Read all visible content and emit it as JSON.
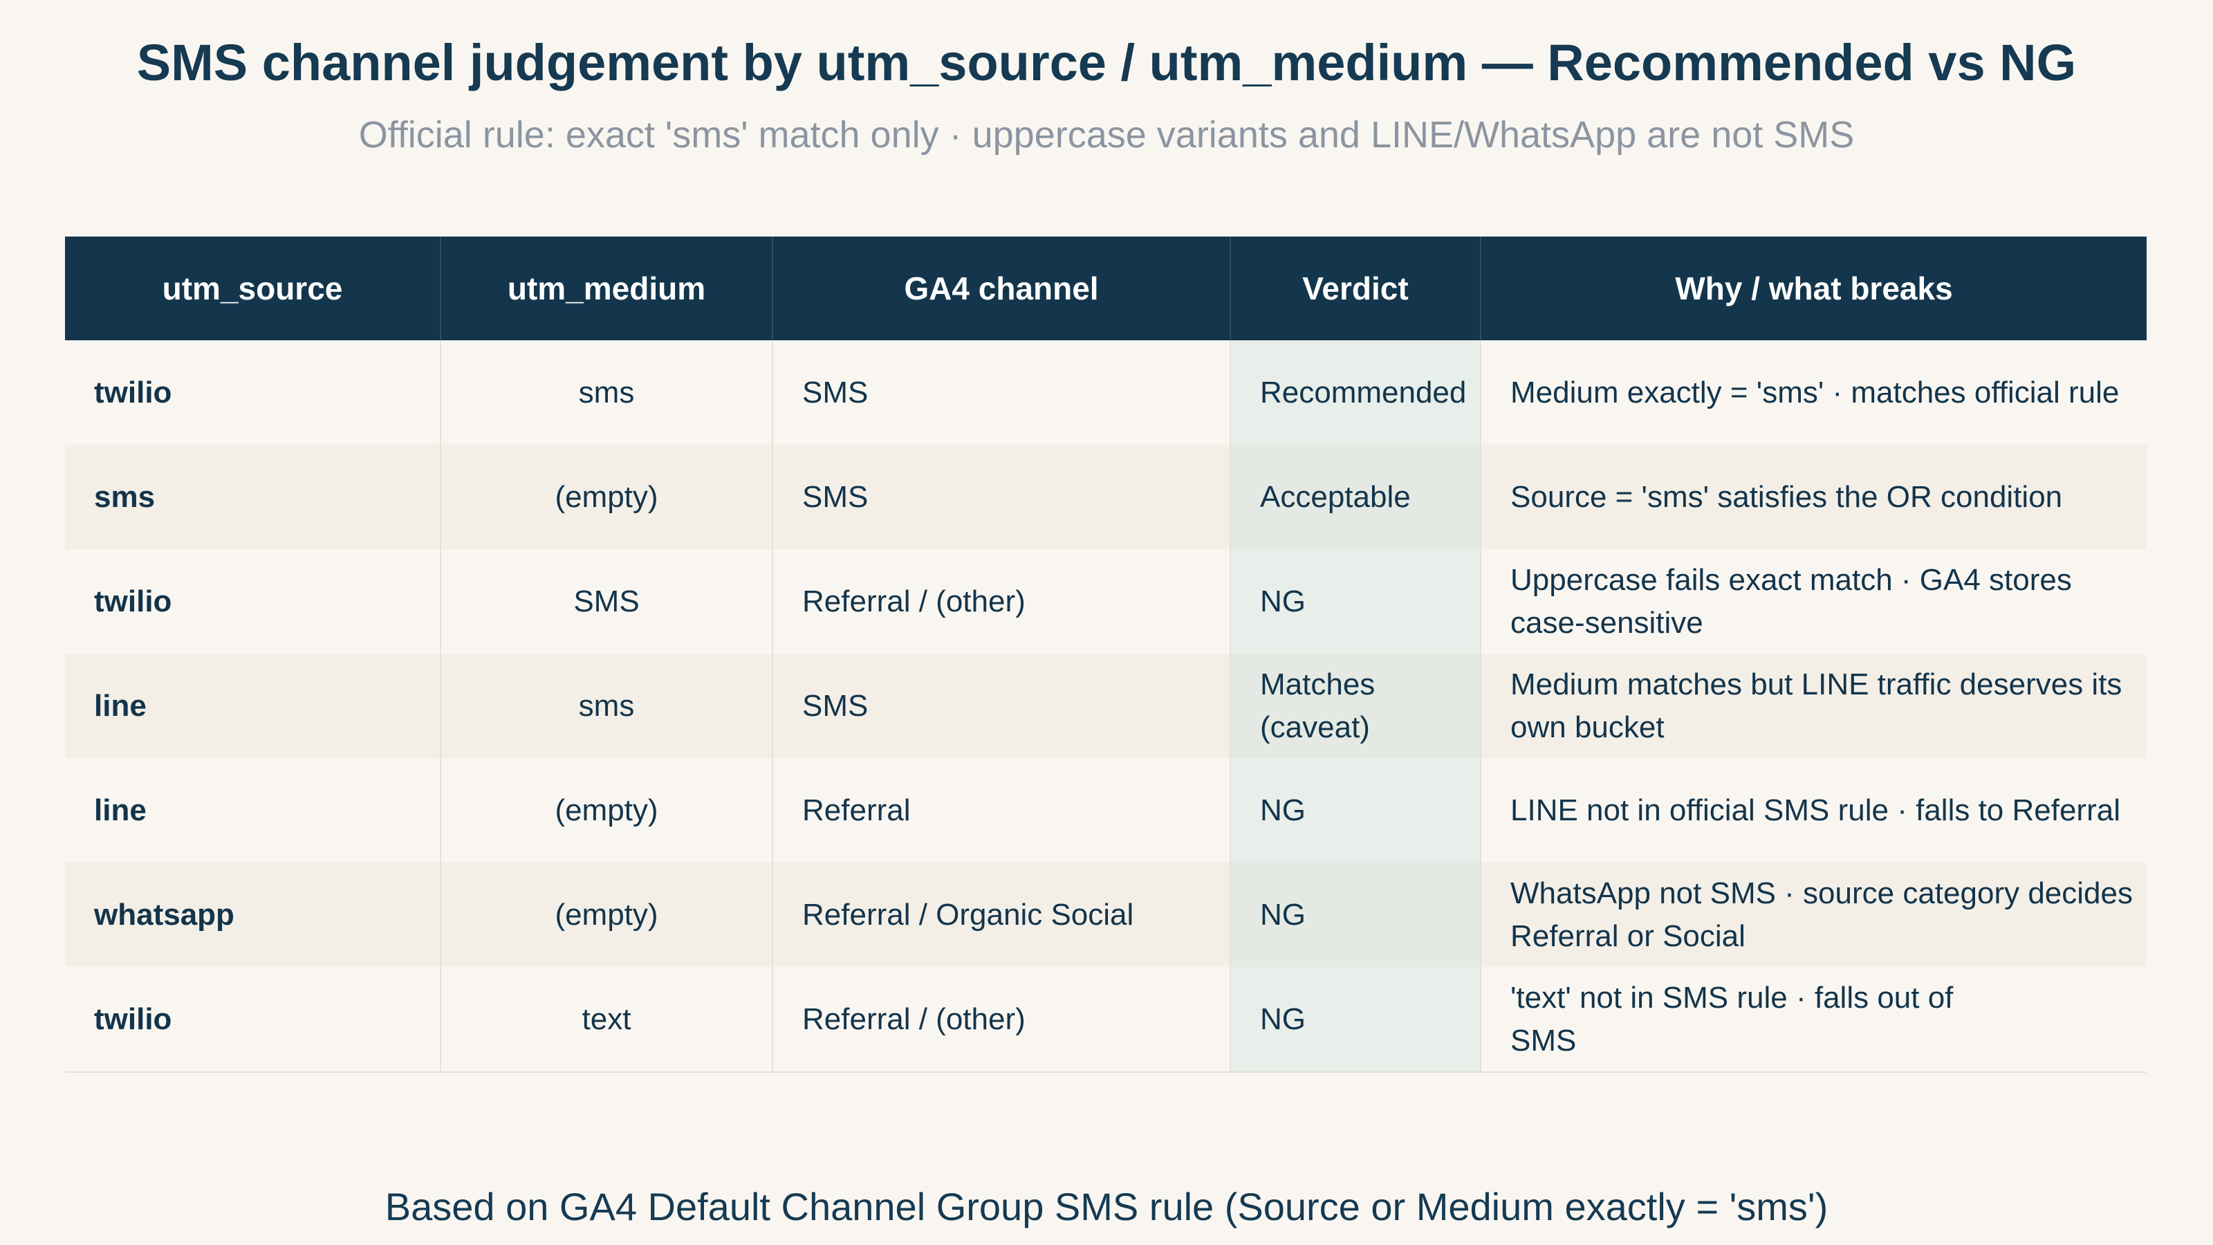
{
  "title": "SMS channel judgement by utm_source / utm_medium — Recommended vs NG",
  "subtitle": "Official rule: exact 'sms' match only · uppercase variants and LINE/WhatsApp are not SMS",
  "footer": "Based on GA4 Default Channel Group SMS rule (Source or Medium exactly = 'sms')",
  "table": {
    "headers": [
      "utm_source",
      "utm_medium",
      "GA4 channel",
      "Verdict",
      "Why / what breaks"
    ],
    "rows": [
      {
        "source": "twilio",
        "medium": "sms",
        "channel": "SMS",
        "verdict": "Recommended",
        "why": "Medium exactly = 'sms' · matches official rule"
      },
      {
        "source": "sms",
        "medium": "(empty)",
        "channel": "SMS",
        "verdict": "Acceptable",
        "why": "Source = 'sms' satisfies the OR condition"
      },
      {
        "source": "twilio",
        "medium": "SMS",
        "channel": "Referral / (other)",
        "verdict": "NG",
        "why": "Uppercase fails exact match · GA4 stores case-sensitive"
      },
      {
        "source": "line",
        "medium": "sms",
        "channel": "SMS",
        "verdict": "Matches (caveat)",
        "why": "Medium matches but LINE traffic deserves its own bucket"
      },
      {
        "source": "line",
        "medium": "(empty)",
        "channel": "Referral",
        "verdict": "NG",
        "why": "LINE not in official SMS rule · falls to Referral"
      },
      {
        "source": "whatsapp",
        "medium": "(empty)",
        "channel": "Referral / Organic Social",
        "verdict": "NG",
        "why": "WhatsApp not SMS · source category decides Referral or Social"
      },
      {
        "source": "twilio",
        "medium": "text",
        "channel": "Referral / (other)",
        "verdict": "NG",
        "why": "'text' not in SMS rule · falls out of SMS"
      }
    ]
  },
  "colors": {
    "header_bg": "#13364d",
    "title": "#153a52",
    "subtitle": "#8b95a1",
    "background": "#f9f6f1",
    "alt_row": "#f3efe7"
  }
}
